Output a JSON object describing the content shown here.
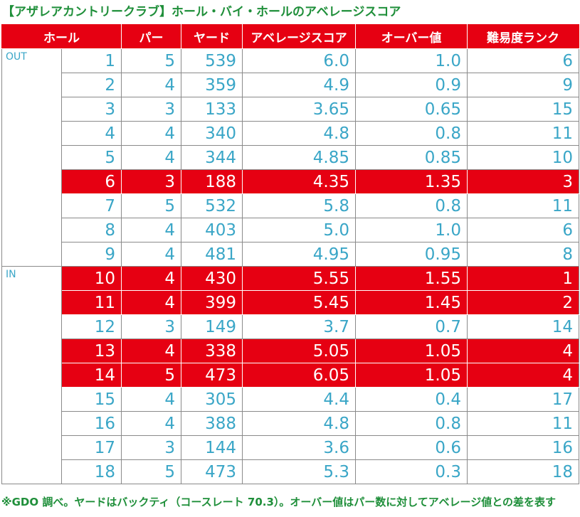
{
  "title": "【アザレアカントリークラブ】ホール・バイ・ホールのアベレージスコア",
  "headers": [
    "ホール",
    "パー",
    "ヤード",
    "アベレージスコア",
    "オーバー値",
    "難易度ランク"
  ],
  "sections": {
    "out": "OUT",
    "in": "IN"
  },
  "rows": [
    {
      "hole": "1",
      "par": "5",
      "yard": "539",
      "avg": "6.0",
      "over": "1.0",
      "rank": "6"
    },
    {
      "hole": "2",
      "par": "4",
      "yard": "359",
      "avg": "4.9",
      "over": "0.9",
      "rank": "9"
    },
    {
      "hole": "3",
      "par": "3",
      "yard": "133",
      "avg": "3.65",
      "over": "0.65",
      "rank": "15"
    },
    {
      "hole": "4",
      "par": "4",
      "yard": "340",
      "avg": "4.8",
      "over": "0.8",
      "rank": "11"
    },
    {
      "hole": "5",
      "par": "4",
      "yard": "344",
      "avg": "4.85",
      "over": "0.85",
      "rank": "10"
    },
    {
      "hole": "6",
      "par": "3",
      "yard": "188",
      "avg": "4.35",
      "over": "1.35",
      "rank": "3"
    },
    {
      "hole": "7",
      "par": "5",
      "yard": "532",
      "avg": "5.8",
      "over": "0.8",
      "rank": "11"
    },
    {
      "hole": "8",
      "par": "4",
      "yard": "403",
      "avg": "5.0",
      "over": "1.0",
      "rank": "6"
    },
    {
      "hole": "9",
      "par": "4",
      "yard": "481",
      "avg": "4.95",
      "over": "0.95",
      "rank": "8"
    },
    {
      "hole": "10",
      "par": "4",
      "yard": "430",
      "avg": "5.55",
      "over": "1.55",
      "rank": "1"
    },
    {
      "hole": "11",
      "par": "4",
      "yard": "399",
      "avg": "5.45",
      "over": "1.45",
      "rank": "2"
    },
    {
      "hole": "12",
      "par": "3",
      "yard": "149",
      "avg": "3.7",
      "over": "0.7",
      "rank": "14"
    },
    {
      "hole": "13",
      "par": "4",
      "yard": "338",
      "avg": "5.05",
      "over": "1.05",
      "rank": "4"
    },
    {
      "hole": "14",
      "par": "5",
      "yard": "473",
      "avg": "6.05",
      "over": "1.05",
      "rank": "4"
    },
    {
      "hole": "15",
      "par": "4",
      "yard": "305",
      "avg": "4.4",
      "over": "0.4",
      "rank": "17"
    },
    {
      "hole": "16",
      "par": "4",
      "yard": "388",
      "avg": "4.8",
      "over": "0.8",
      "rank": "11"
    },
    {
      "hole": "17",
      "par": "3",
      "yard": "144",
      "avg": "3.6",
      "over": "0.6",
      "rank": "16"
    },
    {
      "hole": "18",
      "par": "5",
      "yard": "473",
      "avg": "5.3",
      "over": "0.3",
      "rank": "18"
    }
  ],
  "highlighted_holes": [
    "6",
    "10",
    "11",
    "13",
    "14"
  ],
  "colors": {
    "title_green": "#1f8f3a",
    "header_red": "#e60012",
    "highlight_red": "#e60012",
    "value_blue": "#3aa6c7"
  },
  "footnote": "※GDO 調べ。ヤードはバックティ（コースレート 70.3）。オーバー値はパー数に対してアベレージ値との差を表す"
}
